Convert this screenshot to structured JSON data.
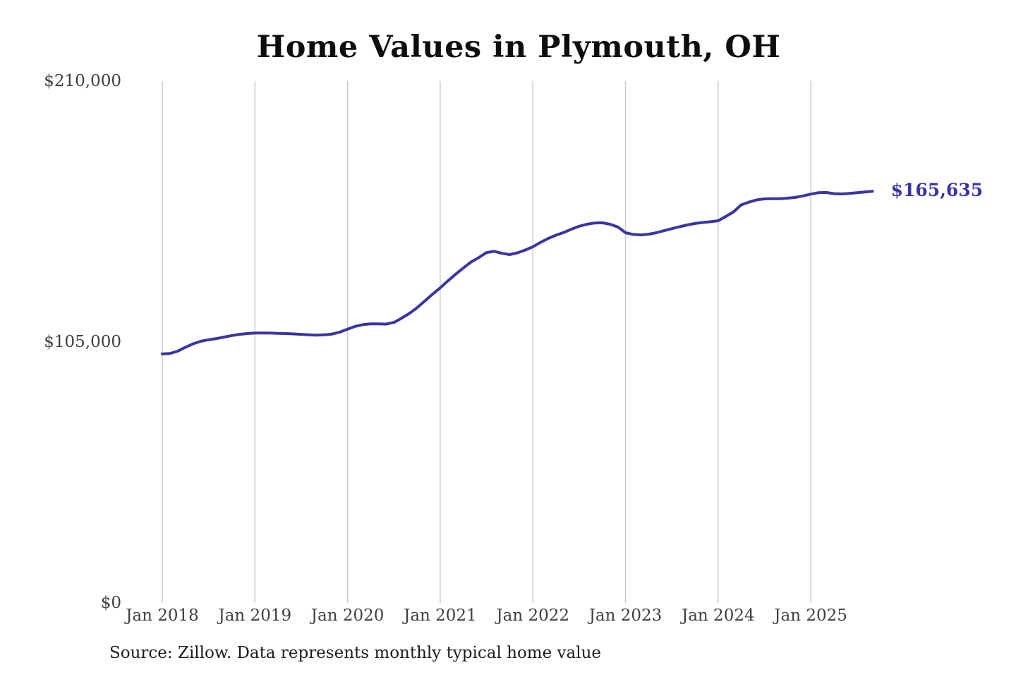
{
  "page": {
    "background_color": "#ffffff"
  },
  "chart_data": {
    "type": "line",
    "title": "Home Values in Plymouth, OH",
    "source_note": "Source: Zillow. Data represents monthly typical home value",
    "end_label": "$165,635",
    "xlabel": "",
    "ylabel": "",
    "x_tick_labels": [
      "Jan 2018",
      "Jan 2019",
      "Jan 2020",
      "Jan 2021",
      "Jan 2022",
      "Jan 2023",
      "Jan 2024",
      "Jan 2025"
    ],
    "y_ticks": [
      {
        "label": "$210,000",
        "value": 210000
      },
      {
        "label": "$105,000",
        "value": 105000
      },
      {
        "label": "$0",
        "value": 0
      }
    ],
    "ylim": [
      0,
      210000
    ],
    "grid": "vertical-only",
    "legend_position": "none",
    "colors": {
      "line": "#3b35a2",
      "grid": "#c9c9c9",
      "axis_text": "#3f3f3f",
      "title_text": "#0d0d0d",
      "source_text": "#1c1c1c",
      "end_label_text": "#3b35a2"
    },
    "series": [
      {
        "name": "Monthly typical home value",
        "start_month": "2018-01",
        "end_month": "2025-09",
        "interval": "monthly",
        "values": [
          100200,
          100400,
          101300,
          102900,
          104300,
          105300,
          105900,
          106400,
          107000,
          107600,
          108100,
          108400,
          108600,
          108650,
          108600,
          108500,
          108400,
          108250,
          108100,
          107900,
          107750,
          107900,
          108200,
          109000,
          110200,
          111300,
          112000,
          112300,
          112300,
          112200,
          112900,
          114600,
          116500,
          118800,
          121500,
          124200,
          126800,
          129600,
          132300,
          134800,
          137200,
          139000,
          141000,
          141500,
          140700,
          140200,
          140900,
          142000,
          143300,
          145100,
          146700,
          148000,
          149100,
          150400,
          151600,
          152400,
          152900,
          153000,
          152400,
          151300,
          149000,
          148300,
          148100,
          148400,
          149000,
          149800,
          150600,
          151400,
          152100,
          152700,
          153100,
          153400,
          153800,
          155500,
          157400,
          160200,
          161300,
          162200,
          162600,
          162700,
          162700,
          162900,
          163200,
          163800,
          164500,
          165100,
          165200,
          164700,
          164600,
          164800,
          165100,
          165400,
          165635
        ]
      }
    ]
  }
}
